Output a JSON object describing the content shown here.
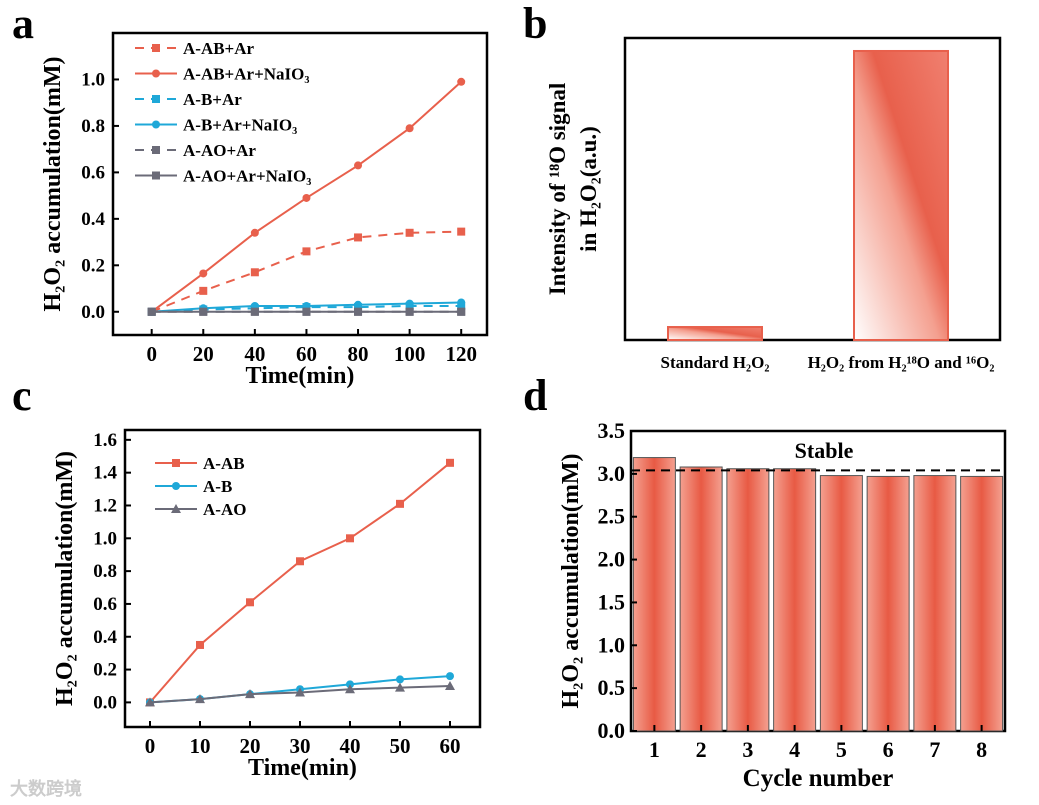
{
  "panel_labels": [
    "a",
    "b",
    "c",
    "d"
  ],
  "watermark": "大数跨境",
  "chart_data": [
    {
      "id": "a",
      "type": "line",
      "xlabel": "Time(min)",
      "ylabel": "H₂O₂ accumulation(mM)",
      "xlim": [
        -15,
        130
      ],
      "ylim": [
        -0.1,
        1.2
      ],
      "xticks": [
        0,
        20,
        40,
        60,
        80,
        100,
        120
      ],
      "yticks": [
        0.0,
        0.2,
        0.4,
        0.6,
        0.8,
        1.0
      ],
      "legend": "top-left",
      "grid": false,
      "x": [
        0,
        20,
        40,
        60,
        80,
        100,
        120
      ],
      "series": [
        {
          "name": "A-AB+Ar",
          "color": "#e8604c",
          "dash": true,
          "marker": "square",
          "values": [
            0,
            0.09,
            0.17,
            0.26,
            0.32,
            0.34,
            0.345
          ]
        },
        {
          "name": "A-AB+Ar+NaIO₃",
          "color": "#e8604c",
          "dash": false,
          "marker": "circle",
          "values": [
            0,
            0.165,
            0.34,
            0.49,
            0.63,
            0.79,
            0.99
          ]
        },
        {
          "name": "A-B+Ar",
          "color": "#1fa8d8",
          "dash": true,
          "marker": "square",
          "values": [
            0,
            0.01,
            0.015,
            0.02,
            0.02,
            0.025,
            0.025
          ]
        },
        {
          "name": "A-B+Ar+NaIO₃",
          "color": "#1fa8d8",
          "dash": false,
          "marker": "circle",
          "values": [
            0,
            0.015,
            0.025,
            0.025,
            0.03,
            0.035,
            0.04
          ]
        },
        {
          "name": "A-AO+Ar",
          "color": "#6b6b78",
          "dash": true,
          "marker": "square",
          "values": [
            0,
            0,
            0,
            0,
            0,
            0,
            0
          ]
        },
        {
          "name": "A-AO+Ar+NaIO₃",
          "color": "#6b6b78",
          "dash": false,
          "marker": "square",
          "values": [
            0,
            0,
            0,
            0,
            0,
            0,
            0
          ]
        }
      ]
    },
    {
      "id": "b",
      "type": "bar",
      "ylabel_line1": "Intensity of ¹⁸O signal",
      "ylabel_line2": "in H₂O₂(a.u.)",
      "categories": [
        "Standard H₂O₂",
        "H₂O₂ from H₂¹⁸O and ¹⁶O₂"
      ],
      "values": [
        4.3,
        95.7
      ],
      "ylim": [
        0,
        100
      ],
      "color": "#e8604c"
    },
    {
      "id": "c",
      "type": "line",
      "xlabel": "Time(min)",
      "ylabel": "H₂O₂ accumulation(mM)",
      "xlim": [
        -5,
        66
      ],
      "ylim": [
        -0.15,
        1.66
      ],
      "xticks": [
        0,
        10,
        20,
        30,
        40,
        50,
        60
      ],
      "yticks": [
        0.0,
        0.2,
        0.4,
        0.6,
        0.8,
        1.0,
        1.2,
        1.4,
        1.6
      ],
      "legend": "top-left",
      "grid": false,
      "x": [
        0,
        10,
        20,
        30,
        40,
        50,
        60
      ],
      "series": [
        {
          "name": "A-AB",
          "color": "#e8604c",
          "marker": "square",
          "values": [
            0,
            0.35,
            0.61,
            0.86,
            1.0,
            1.21,
            1.46
          ]
        },
        {
          "name": "A-B",
          "color": "#1fa8d8",
          "marker": "circle",
          "values": [
            0,
            0.02,
            0.05,
            0.08,
            0.11,
            0.14,
            0.16
          ]
        },
        {
          "name": "A-AO",
          "color": "#6b6b78",
          "marker": "triangle",
          "values": [
            0,
            0.02,
            0.05,
            0.06,
            0.08,
            0.09,
            0.1
          ]
        }
      ]
    },
    {
      "id": "d",
      "type": "bar",
      "xlabel": "Cycle number",
      "ylabel": "H₂O₂ accumulation(mM)",
      "categories": [
        "1",
        "2",
        "3",
        "4",
        "5",
        "6",
        "7",
        "8"
      ],
      "values": [
        3.19,
        3.08,
        3.06,
        3.06,
        2.98,
        2.97,
        2.98,
        2.97
      ],
      "ylim": [
        0,
        3.5
      ],
      "yticks": [
        0.0,
        0.5,
        1.0,
        1.5,
        2.0,
        2.5,
        3.0,
        3.5
      ],
      "reference_line": 3.04,
      "annotation": "Stable",
      "color": "#e8604c"
    }
  ]
}
